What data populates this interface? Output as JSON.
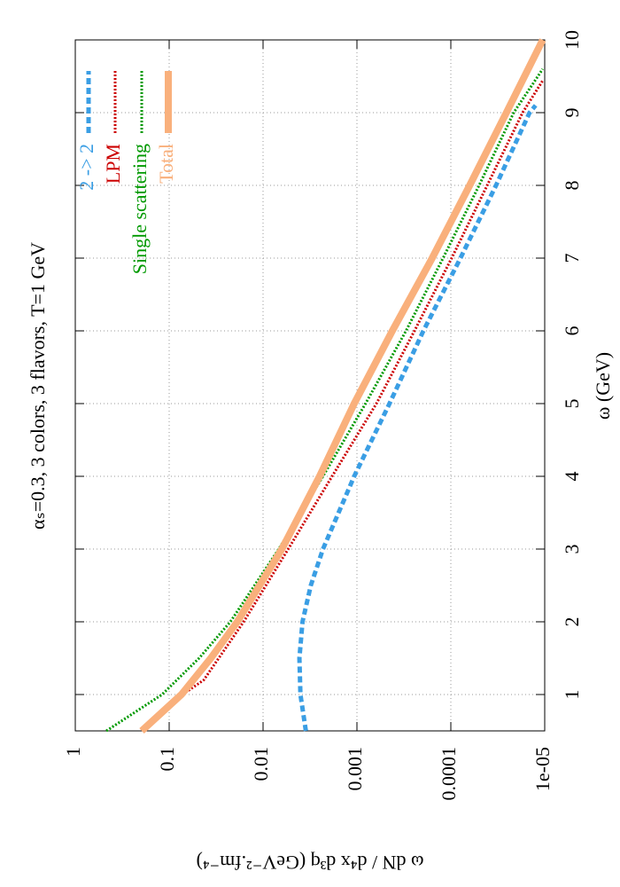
{
  "chart_data": {
    "type": "line",
    "title": "αₛ=0.3, 3 colors, 3 flavors, T=1 GeV",
    "x_label": "ω (GeV)",
    "y_label": "ω dN / d⁴x d³q (GeV⁻².fm⁻⁴)",
    "xlim": [
      0.5,
      10
    ],
    "xticks": [
      1,
      2,
      3,
      4,
      5,
      6,
      7,
      8,
      9,
      10
    ],
    "ylim": [
      1e-05,
      1
    ],
    "log_y": true,
    "yticks": [
      1,
      0.1,
      0.01,
      0.001,
      0.0001,
      {
        "value": 1e-05,
        "label": "1e-05"
      }
    ],
    "grid": true,
    "legend": "top right",
    "series": [
      {
        "name": "2 -> 2",
        "color": "#3a9ee4",
        "style": "dashed",
        "x": [
          0.5,
          1,
          1.5,
          2,
          2.5,
          3,
          4,
          5,
          6,
          7,
          8,
          9,
          9.1
        ],
        "values": [
          0.0035,
          0.004,
          0.0041,
          0.0038,
          0.0031,
          0.0023,
          0.00107,
          0.00045,
          0.000196,
          7.9e-05,
          3.3e-05,
          1.45e-05,
          1.25e-05
        ]
      },
      {
        "name": "LPM",
        "color": "#cc0000",
        "style": "dotted",
        "x": [
          1,
          1.2,
          2,
          3,
          4,
          5,
          6,
          7,
          8,
          9,
          9.45
        ],
        "values": [
          0.072,
          0.0428,
          0.0161,
          0.0054,
          0.00184,
          0.00062,
          0.000244,
          9.8e-05,
          4.1e-05,
          1.72e-05,
          1.04e-05
        ]
      },
      {
        "name": "Single scattering",
        "color": "#009900",
        "style": "dotted",
        "x": [
          0.5,
          1,
          1.5,
          2,
          3,
          4,
          5,
          6,
          7,
          8,
          9,
          9.6
        ],
        "values": [
          0.467,
          0.119,
          0.048,
          0.0223,
          0.0068,
          0.0023,
          0.00081,
          0.0003,
          0.000121,
          5e-05,
          2.14e-05,
          1.05e-05
        ]
      },
      {
        "name": "Total",
        "color": "#f9b07c",
        "style": "solid",
        "x": [
          0.5,
          1,
          1.5,
          2,
          2.5,
          3,
          4,
          5,
          6,
          7,
          8,
          9,
          10
        ],
        "values": [
          0.196,
          0.074,
          0.036,
          0.0188,
          0.0109,
          0.0063,
          0.0025,
          0.00107,
          0.00042,
          0.000158,
          6.3e-05,
          2.56e-05,
          1.05e-05
        ]
      }
    ]
  }
}
